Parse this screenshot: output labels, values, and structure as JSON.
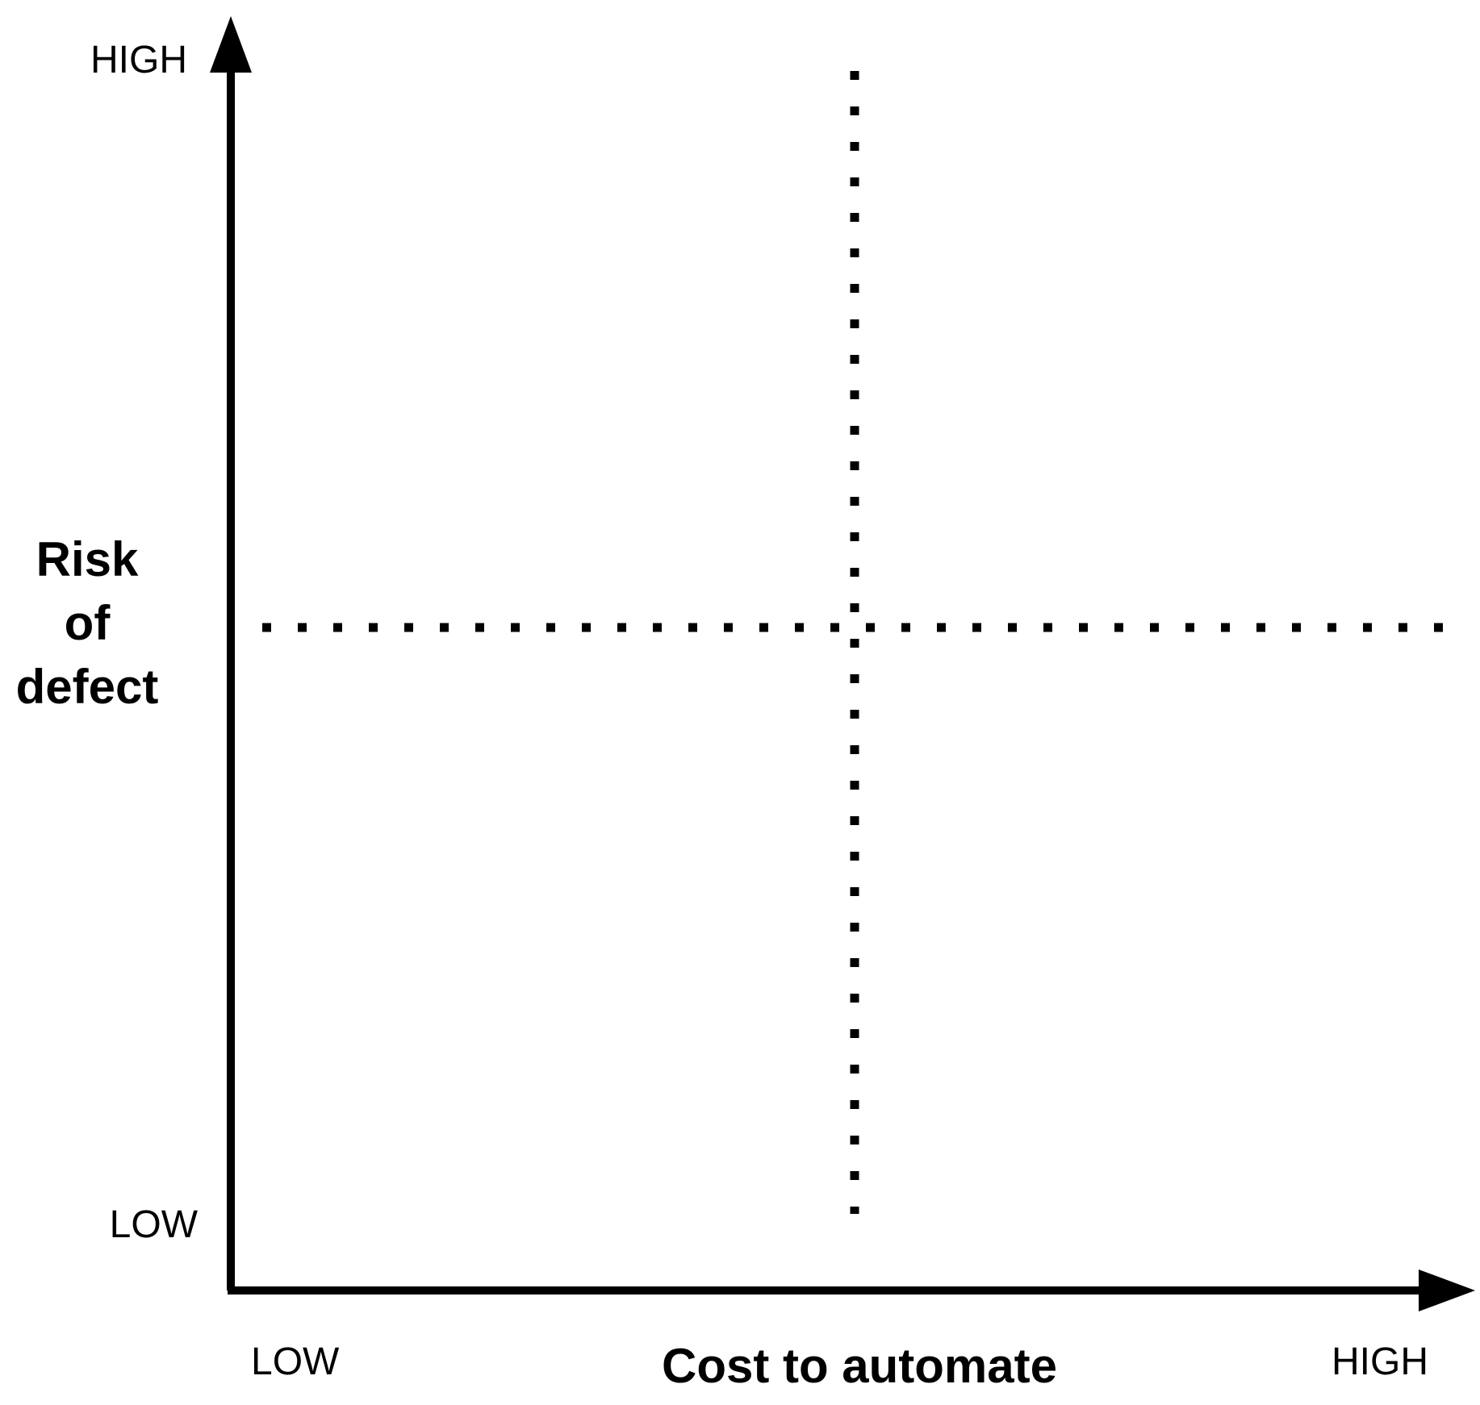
{
  "diagram": {
    "y_axis": {
      "title_lines": [
        "Risk",
        "of",
        "defect"
      ],
      "high_label": "HIGH",
      "low_label": "LOW"
    },
    "x_axis": {
      "title": "Cost to automate",
      "low_label": "LOW",
      "high_label": "HIGH"
    },
    "colors": {
      "ink": "#000000",
      "background": "#ffffff"
    }
  }
}
